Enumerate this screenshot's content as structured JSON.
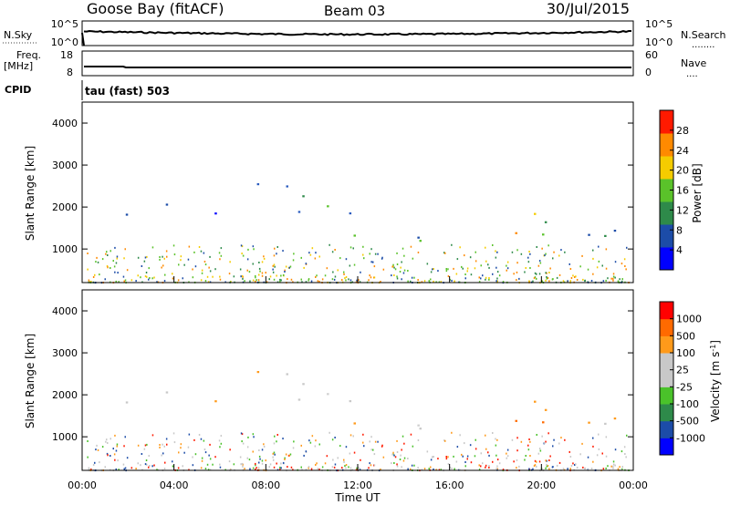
{
  "header": {
    "station": "Goose Bay (fitACF)",
    "beam": "Beam 03",
    "date": "30/Jul/2015"
  },
  "top_panels": {
    "nsky_label": "N.Sky",
    "nsky_ticks": [
      "10^5",
      "10^0"
    ],
    "nsearch_label": "N.Search",
    "nsearch_ticks": [
      "10^5",
      "10^0"
    ],
    "freq_label": "Freq.",
    "freq_unit": "[MHz]",
    "freq_ticks": [
      "18",
      "8"
    ],
    "nave_label": "Nave",
    "nave_ticks": [
      "60",
      "0"
    ],
    "cpid_label": "CPID",
    "cpid_value": "tau (fast) 503",
    "dotted_marker": "........",
    "dotted_marker_short": "...."
  },
  "chart_data": [
    {
      "type": "heatmap",
      "name": "power",
      "ylabel": "Slant Range [km]",
      "y_ticks": [
        "4000",
        "3000",
        "2000",
        "1000"
      ],
      "y_tick_values": [
        4000,
        3000,
        2000,
        1000
      ],
      "ylim": [
        200,
        4500
      ],
      "xlim": [
        0,
        24
      ],
      "colorbar": {
        "label": "Power [dB]",
        "ticks": [
          "28",
          "24",
          "20",
          "16",
          "12",
          "8",
          "4"
        ],
        "colors": [
          "#0000ff",
          "#1c4ca8",
          "#2e8a4a",
          "#5ac22a",
          "#f5cc00",
          "#ff8a00",
          "#ff1a00"
        ]
      },
      "scatter_regions": [
        {
          "t": [
            0.6,
            2.6
          ],
          "r": [
            1300,
            1900
          ],
          "c": "mixed-green-blue"
        },
        {
          "t": [
            2.8,
            6.5
          ],
          "r": [
            1700,
            2200
          ],
          "c": "blue"
        },
        {
          "t": [
            6.5,
            9.0
          ],
          "r": [
            2100,
            2900
          ],
          "c": "blue"
        },
        {
          "t": [
            9.2,
            12.5
          ],
          "r": [
            1500,
            2500
          ],
          "c": "green-blue"
        },
        {
          "t": [
            10.0,
            16.0
          ],
          "r": [
            900,
            1400
          ],
          "c": "green"
        },
        {
          "t": [
            18.3,
            21.0
          ],
          "r": [
            800,
            2000
          ],
          "c": "orange-red"
        },
        {
          "t": [
            21.0,
            24.0
          ],
          "r": [
            1300,
            2200
          ],
          "c": "mixed-green-blue"
        }
      ]
    },
    {
      "type": "heatmap",
      "name": "velocity",
      "ylabel": "Slant Range [km]",
      "y_ticks": [
        "4000",
        "3000",
        "2000",
        "1000"
      ],
      "y_tick_values": [
        4000,
        3000,
        2000,
        1000
      ],
      "ylim": [
        200,
        4500
      ],
      "xlim": [
        0,
        24
      ],
      "x_ticks": [
        "00:00",
        "04:00",
        "08:00",
        "12:00",
        "16:00",
        "20:00",
        "00:00"
      ],
      "x_tick_values": [
        0,
        4,
        8,
        12,
        16,
        20,
        24
      ],
      "xlabel": "Time UT",
      "colorbar": {
        "label": "Velocity [m s",
        "label_sup": "-1",
        "label_end": "]",
        "ticks": [
          "1000",
          "500",
          "100",
          "25",
          "-25",
          "-100",
          "-500",
          "-1000"
        ],
        "colors": [
          "#ff0000",
          "#ff6a00",
          "#ff9a1a",
          "#c8c8c8",
          "#c8c8c8",
          "#4ac22a",
          "#2e8a4a",
          "#1c4ca8",
          "#0000ff"
        ]
      }
    }
  ]
}
